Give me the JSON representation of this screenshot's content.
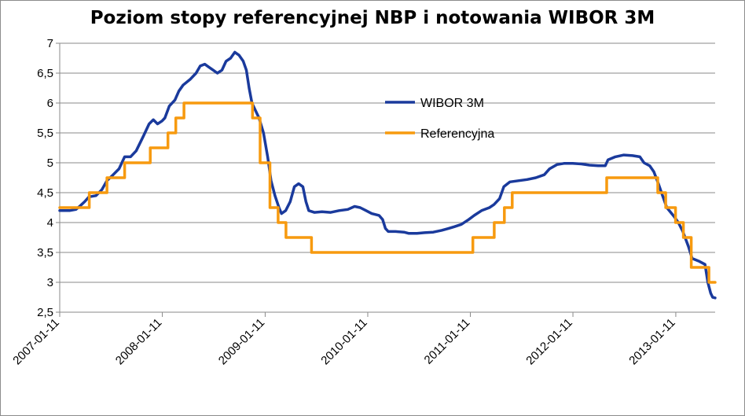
{
  "chart_data": {
    "type": "line",
    "title": "Poziom stopy referencyjnej NBP i notowania WIBOR 3M",
    "xlabel": "",
    "ylabel": "",
    "ylim": [
      2.5,
      7
    ],
    "xlim": [
      "2007-01-11",
      "2013-05-31"
    ],
    "grid": "horizontal",
    "legend_position": "center-right",
    "y_ticks": [
      "2,5",
      "3",
      "3,5",
      "4",
      "4,5",
      "5",
      "5,5",
      "6",
      "6,5",
      "7"
    ],
    "y_tick_values": [
      2.5,
      3,
      3.5,
      4,
      4.5,
      5,
      5.5,
      6,
      6.5,
      7
    ],
    "x_ticks": [
      "2007-01-11",
      "2008-01-11",
      "2009-01-11",
      "2010-01-11",
      "2011-01-11",
      "2012-01-11",
      "2013-01-11"
    ],
    "series": [
      {
        "name": "WIBOR 3M",
        "color": "#1a3a9c",
        "points": [
          [
            "2007-01-11",
            4.2
          ],
          [
            "2007-02-15",
            4.2
          ],
          [
            "2007-03-10",
            4.22
          ],
          [
            "2007-03-25",
            4.28
          ],
          [
            "2007-04-10",
            4.35
          ],
          [
            "2007-04-25",
            4.43
          ],
          [
            "2007-05-20",
            4.45
          ],
          [
            "2007-06-10",
            4.55
          ],
          [
            "2007-06-28",
            4.7
          ],
          [
            "2007-07-20",
            4.8
          ],
          [
            "2007-08-10",
            4.9
          ],
          [
            "2007-08-30",
            5.1
          ],
          [
            "2007-09-20",
            5.1
          ],
          [
            "2007-10-10",
            5.2
          ],
          [
            "2007-11-05",
            5.45
          ],
          [
            "2007-11-25",
            5.65
          ],
          [
            "2007-12-10",
            5.72
          ],
          [
            "2007-12-25",
            5.65
          ],
          [
            "2008-01-10",
            5.7
          ],
          [
            "2008-01-20",
            5.75
          ],
          [
            "2008-02-05",
            5.95
          ],
          [
            "2008-02-25",
            6.05
          ],
          [
            "2008-03-10",
            6.2
          ],
          [
            "2008-03-25",
            6.3
          ],
          [
            "2008-04-20",
            6.4
          ],
          [
            "2008-05-10",
            6.5
          ],
          [
            "2008-05-25",
            6.62
          ],
          [
            "2008-06-10",
            6.65
          ],
          [
            "2008-06-25",
            6.6
          ],
          [
            "2008-07-10",
            6.55
          ],
          [
            "2008-07-25",
            6.5
          ],
          [
            "2008-08-10",
            6.55
          ],
          [
            "2008-08-25",
            6.7
          ],
          [
            "2008-09-10",
            6.75
          ],
          [
            "2008-09-25",
            6.85
          ],
          [
            "2008-10-10",
            6.8
          ],
          [
            "2008-10-25",
            6.7
          ],
          [
            "2008-11-05",
            6.55
          ],
          [
            "2008-11-15",
            6.25
          ],
          [
            "2008-11-25",
            6.0
          ],
          [
            "2008-12-05",
            5.9
          ],
          [
            "2008-12-20",
            5.75
          ],
          [
            "2009-01-05",
            5.5
          ],
          [
            "2009-01-20",
            5.1
          ],
          [
            "2009-02-01",
            4.7
          ],
          [
            "2009-02-15",
            4.45
          ],
          [
            "2009-03-01",
            4.25
          ],
          [
            "2009-03-10",
            4.15
          ],
          [
            "2009-03-25",
            4.2
          ],
          [
            "2009-04-10",
            4.35
          ],
          [
            "2009-04-25",
            4.6
          ],
          [
            "2009-05-10",
            4.65
          ],
          [
            "2009-05-25",
            4.6
          ],
          [
            "2009-06-05",
            4.35
          ],
          [
            "2009-06-15",
            4.2
          ],
          [
            "2009-07-05",
            4.17
          ],
          [
            "2009-08-01",
            4.18
          ],
          [
            "2009-09-01",
            4.17
          ],
          [
            "2009-10-01",
            4.2
          ],
          [
            "2009-11-01",
            4.22
          ],
          [
            "2009-11-25",
            4.27
          ],
          [
            "2009-12-15",
            4.25
          ],
          [
            "2010-01-05",
            4.2
          ],
          [
            "2010-01-25",
            4.15
          ],
          [
            "2010-02-20",
            4.12
          ],
          [
            "2010-03-05",
            4.05
          ],
          [
            "2010-03-15",
            3.9
          ],
          [
            "2010-03-25",
            3.85
          ],
          [
            "2010-04-20",
            3.85
          ],
          [
            "2010-05-20",
            3.84
          ],
          [
            "2010-06-05",
            3.82
          ],
          [
            "2010-07-05",
            3.82
          ],
          [
            "2010-08-01",
            3.83
          ],
          [
            "2010-09-01",
            3.84
          ],
          [
            "2010-10-01",
            3.87
          ],
          [
            "2010-10-25",
            3.9
          ],
          [
            "2010-11-15",
            3.93
          ],
          [
            "2010-12-10",
            3.97
          ],
          [
            "2011-01-05",
            4.05
          ],
          [
            "2011-01-25",
            4.12
          ],
          [
            "2011-02-20",
            4.2
          ],
          [
            "2011-03-20",
            4.25
          ],
          [
            "2011-04-05",
            4.3
          ],
          [
            "2011-04-25",
            4.4
          ],
          [
            "2011-05-10",
            4.6
          ],
          [
            "2011-06-01",
            4.68
          ],
          [
            "2011-07-01",
            4.7
          ],
          [
            "2011-08-01",
            4.72
          ],
          [
            "2011-09-01",
            4.75
          ],
          [
            "2011-10-01",
            4.8
          ],
          [
            "2011-10-20",
            4.9
          ],
          [
            "2011-11-15",
            4.97
          ],
          [
            "2011-12-10",
            4.99
          ],
          [
            "2012-01-10",
            4.99
          ],
          [
            "2012-02-10",
            4.98
          ],
          [
            "2012-03-10",
            4.96
          ],
          [
            "2012-04-10",
            4.95
          ],
          [
            "2012-05-05",
            4.95
          ],
          [
            "2012-05-15",
            5.05
          ],
          [
            "2012-06-10",
            5.1
          ],
          [
            "2012-07-10",
            5.13
          ],
          [
            "2012-08-10",
            5.12
          ],
          [
            "2012-09-05",
            5.1
          ],
          [
            "2012-09-20",
            5.0
          ],
          [
            "2012-10-10",
            4.95
          ],
          [
            "2012-10-25",
            4.85
          ],
          [
            "2012-11-10",
            4.65
          ],
          [
            "2012-11-25",
            4.45
          ],
          [
            "2012-12-10",
            4.25
          ],
          [
            "2013-01-05",
            4.1
          ],
          [
            "2013-01-20",
            4.0
          ],
          [
            "2013-02-05",
            3.85
          ],
          [
            "2013-02-25",
            3.6
          ],
          [
            "2013-03-10",
            3.4
          ],
          [
            "2013-04-05",
            3.35
          ],
          [
            "2013-04-25",
            3.3
          ],
          [
            "2013-05-05",
            3.0
          ],
          [
            "2013-05-15",
            2.82
          ],
          [
            "2013-05-22",
            2.75
          ],
          [
            "2013-05-31",
            2.74
          ]
        ]
      },
      {
        "name": "Referencyjna",
        "color": "#f79a0f",
        "step": true,
        "points": [
          [
            "2007-01-11",
            4.25
          ],
          [
            "2007-04-26",
            4.5
          ],
          [
            "2007-06-28",
            4.75
          ],
          [
            "2007-08-30",
            5.0
          ],
          [
            "2007-11-29",
            5.25
          ],
          [
            "2008-01-31",
            5.5
          ],
          [
            "2008-02-28",
            5.75
          ],
          [
            "2008-03-28",
            6.0
          ],
          [
            "2008-11-27",
            5.75
          ],
          [
            "2008-12-24",
            5.0
          ],
          [
            "2009-01-28",
            4.25
          ],
          [
            "2009-02-26",
            4.0
          ],
          [
            "2009-03-26",
            3.75
          ],
          [
            "2009-06-25",
            3.5
          ],
          [
            "2011-01-20",
            3.75
          ],
          [
            "2011-04-06",
            4.0
          ],
          [
            "2011-05-12",
            4.25
          ],
          [
            "2011-06-09",
            4.5
          ],
          [
            "2012-05-10",
            4.75
          ],
          [
            "2012-11-08",
            4.5
          ],
          [
            "2012-12-06",
            4.25
          ],
          [
            "2013-01-10",
            4.0
          ],
          [
            "2013-02-07",
            3.75
          ],
          [
            "2013-03-07",
            3.25
          ],
          [
            "2013-05-09",
            3.0
          ],
          [
            "2013-05-31",
            3.0
          ]
        ]
      }
    ]
  }
}
